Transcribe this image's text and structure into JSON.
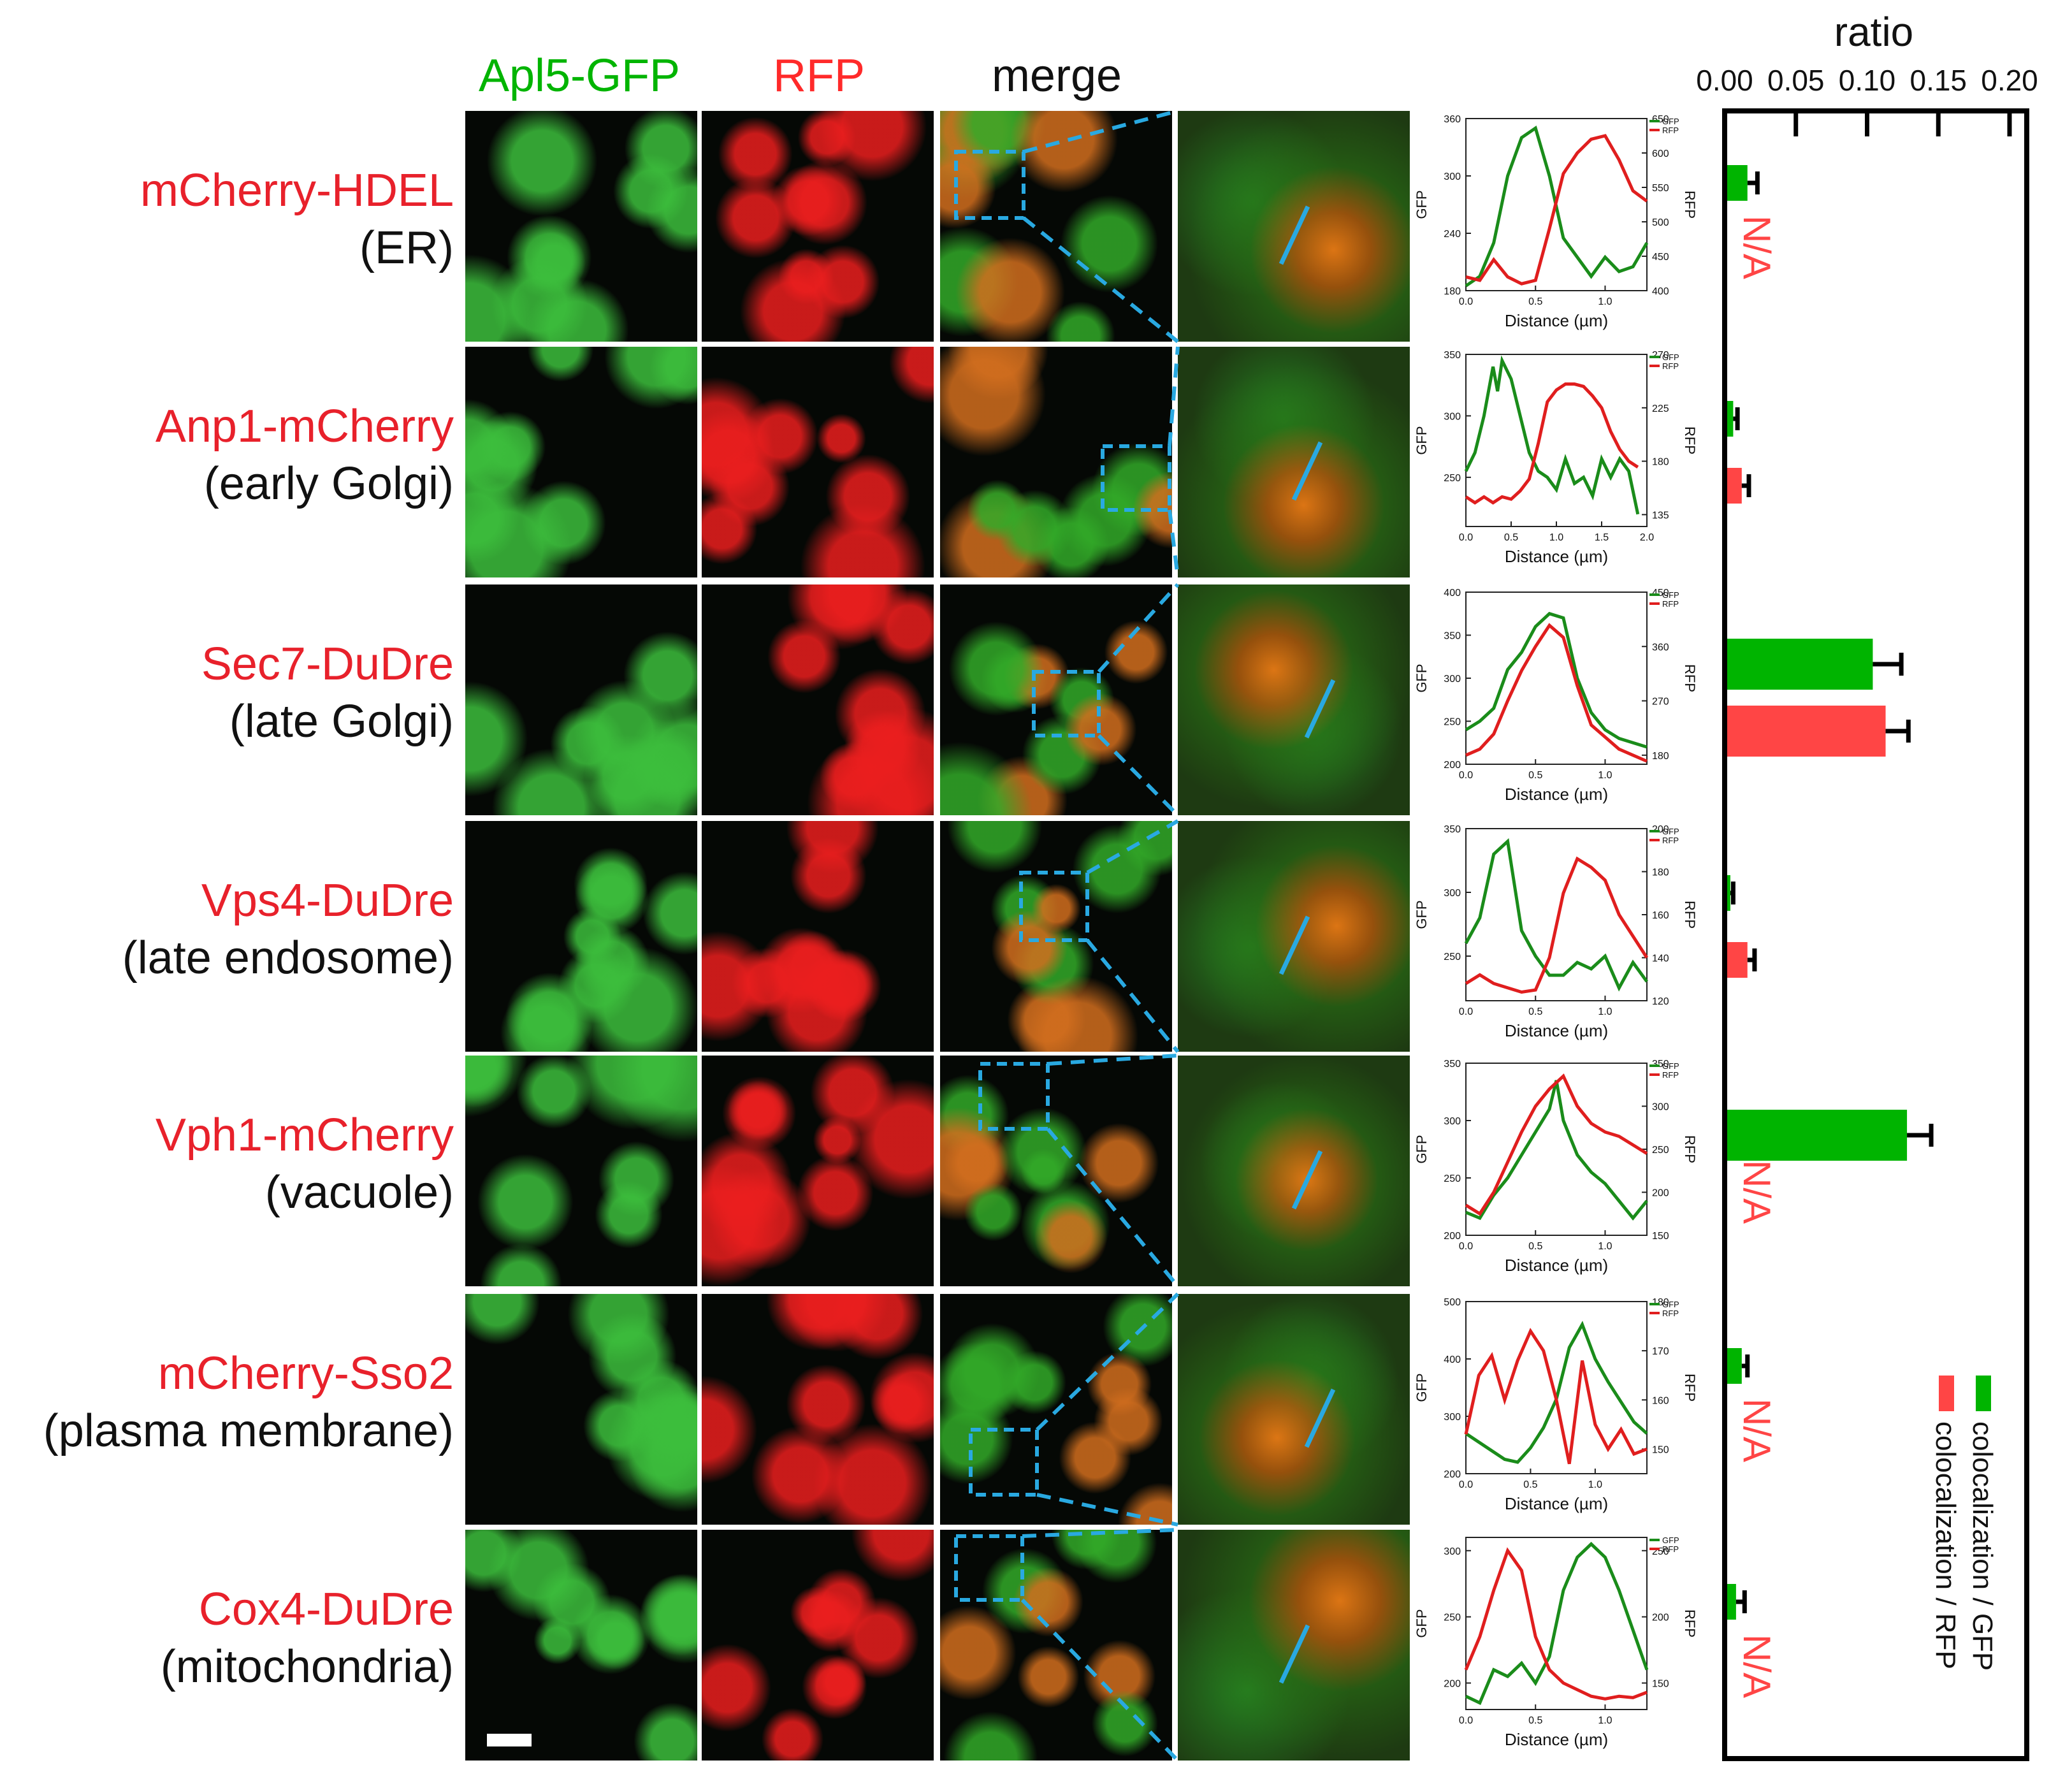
{
  "headers": {
    "green": "Apl5-GFP",
    "red": "RFP",
    "merge": "merge"
  },
  "rows": [
    {
      "marker": "mCherry-HDEL",
      "organelle": "(ER)"
    },
    {
      "marker": "Anp1-mCherry",
      "organelle": "(early Golgi)"
    },
    {
      "marker": "Sec7-DuDre",
      "organelle": "(late Golgi)"
    },
    {
      "marker": "Vps4-DuDre",
      "organelle": "(late endosome)"
    },
    {
      "marker": "Vph1-mCherry",
      "organelle": "(vacuole)"
    },
    {
      "marker": "mCherry-Sso2",
      "organelle": "(plasma membrane)"
    },
    {
      "marker": "Cox4-DuDre",
      "organelle": "(mitochondria)"
    }
  ],
  "colors": {
    "green": "#00b400",
    "red": "#ff3b3b",
    "marker_text": "#e8212b",
    "roi": "#29a9e1",
    "profile_green": "#1a8c1a",
    "profile_red": "#e01e1e"
  },
  "profiles": {
    "xlabel": "Distance (µm)",
    "ylabel_left": "GFP",
    "ylabel_right": "RFP",
    "legend": [
      "GFP",
      "RFP"
    ],
    "panels": [
      {
        "xlim": [
          0,
          1.3
        ],
        "xticks": [
          "0.0",
          "0.5",
          "1.0"
        ],
        "xtickvals": [
          0,
          0.5,
          1.0
        ],
        "gfp_ticks": [
          "180",
          "240",
          "300",
          "360"
        ],
        "gfp_lim": [
          180,
          360
        ],
        "rfp_ticks": [
          "400",
          "450",
          "500",
          "550",
          "600",
          "650"
        ],
        "rfp_lim": [
          400,
          650
        ],
        "gfp": [
          [
            0,
            185
          ],
          [
            0.1,
            195
          ],
          [
            0.2,
            230
          ],
          [
            0.3,
            300
          ],
          [
            0.4,
            340
          ],
          [
            0.5,
            350
          ],
          [
            0.6,
            300
          ],
          [
            0.7,
            235
          ],
          [
            0.8,
            215
          ],
          [
            0.9,
            195
          ],
          [
            1.0,
            215
          ],
          [
            1.1,
            200
          ],
          [
            1.2,
            205
          ],
          [
            1.3,
            230
          ]
        ],
        "rfp": [
          [
            0,
            420
          ],
          [
            0.1,
            415
          ],
          [
            0.2,
            445
          ],
          [
            0.3,
            420
          ],
          [
            0.4,
            410
          ],
          [
            0.5,
            415
          ],
          [
            0.6,
            490
          ],
          [
            0.7,
            570
          ],
          [
            0.8,
            600
          ],
          [
            0.9,
            620
          ],
          [
            1.0,
            625
          ],
          [
            1.1,
            590
          ],
          [
            1.2,
            545
          ],
          [
            1.3,
            530
          ]
        ]
      },
      {
        "xlim": [
          0,
          2.0
        ],
        "xticks": [
          "0.0",
          "0.5",
          "1.0",
          "1.5",
          "2.0"
        ],
        "xtickvals": [
          0,
          0.5,
          1.0,
          1.5,
          2.0
        ],
        "gfp_ticks": [
          "250",
          "300",
          "350"
        ],
        "gfp_lim": [
          210,
          350
        ],
        "rfp_ticks": [
          "135",
          "180",
          "225",
          "270"
        ],
        "rfp_lim": [
          125,
          270
        ],
        "gfp": [
          [
            0,
            255
          ],
          [
            0.1,
            270
          ],
          [
            0.2,
            300
          ],
          [
            0.3,
            340
          ],
          [
            0.35,
            320
          ],
          [
            0.4,
            345
          ],
          [
            0.5,
            330
          ],
          [
            0.6,
            300
          ],
          [
            0.7,
            270
          ],
          [
            0.8,
            255
          ],
          [
            0.9,
            250
          ],
          [
            1.0,
            240
          ],
          [
            1.1,
            265
          ],
          [
            1.2,
            245
          ],
          [
            1.3,
            250
          ],
          [
            1.4,
            235
          ],
          [
            1.5,
            265
          ],
          [
            1.6,
            250
          ],
          [
            1.7,
            265
          ],
          [
            1.8,
            255
          ],
          [
            1.9,
            220
          ]
        ],
        "rfp": [
          [
            0,
            150
          ],
          [
            0.1,
            145
          ],
          [
            0.2,
            150
          ],
          [
            0.3,
            145
          ],
          [
            0.4,
            150
          ],
          [
            0.5,
            148
          ],
          [
            0.6,
            155
          ],
          [
            0.7,
            165
          ],
          [
            0.8,
            195
          ],
          [
            0.9,
            230
          ],
          [
            1.0,
            240
          ],
          [
            1.1,
            245
          ],
          [
            1.2,
            245
          ],
          [
            1.3,
            243
          ],
          [
            1.4,
            235
          ],
          [
            1.5,
            225
          ],
          [
            1.6,
            205
          ],
          [
            1.7,
            190
          ],
          [
            1.8,
            180
          ],
          [
            1.9,
            175
          ]
        ]
      },
      {
        "xlim": [
          0,
          1.3
        ],
        "xticks": [
          "0.0",
          "0.5",
          "1.0"
        ],
        "xtickvals": [
          0,
          0.5,
          1.0
        ],
        "gfp_ticks": [
          "200",
          "250",
          "300",
          "350",
          "400"
        ],
        "gfp_lim": [
          200,
          400
        ],
        "rfp_ticks": [
          "180",
          "270",
          "360",
          "450"
        ],
        "rfp_lim": [
          165,
          450
        ],
        "gfp": [
          [
            0,
            240
          ],
          [
            0.1,
            250
          ],
          [
            0.2,
            265
          ],
          [
            0.3,
            310
          ],
          [
            0.4,
            330
          ],
          [
            0.5,
            360
          ],
          [
            0.6,
            375
          ],
          [
            0.7,
            370
          ],
          [
            0.8,
            300
          ],
          [
            0.9,
            260
          ],
          [
            1.0,
            240
          ],
          [
            1.1,
            230
          ],
          [
            1.2,
            225
          ],
          [
            1.3,
            220
          ]
        ],
        "rfp": [
          [
            0,
            180
          ],
          [
            0.1,
            190
          ],
          [
            0.2,
            215
          ],
          [
            0.3,
            270
          ],
          [
            0.4,
            320
          ],
          [
            0.5,
            360
          ],
          [
            0.6,
            395
          ],
          [
            0.7,
            375
          ],
          [
            0.8,
            295
          ],
          [
            0.9,
            230
          ],
          [
            1.0,
            210
          ],
          [
            1.1,
            190
          ],
          [
            1.2,
            180
          ],
          [
            1.3,
            170
          ]
        ]
      },
      {
        "xlim": [
          0,
          1.3
        ],
        "xticks": [
          "0.0",
          "0.5",
          "1.0"
        ],
        "xtickvals": [
          0,
          0.5,
          1.0
        ],
        "gfp_ticks": [
          "250",
          "300",
          "350"
        ],
        "gfp_lim": [
          215,
          350
        ],
        "rfp_ticks": [
          "120",
          "140",
          "160",
          "180",
          "200"
        ],
        "rfp_lim": [
          120,
          200
        ],
        "gfp": [
          [
            0,
            260
          ],
          [
            0.1,
            280
          ],
          [
            0.2,
            330
          ],
          [
            0.3,
            340
          ],
          [
            0.4,
            270
          ],
          [
            0.5,
            250
          ],
          [
            0.6,
            235
          ],
          [
            0.7,
            235
          ],
          [
            0.8,
            245
          ],
          [
            0.9,
            240
          ],
          [
            1.0,
            250
          ],
          [
            1.1,
            225
          ],
          [
            1.2,
            245
          ],
          [
            1.3,
            230
          ]
        ],
        "rfp": [
          [
            0,
            128
          ],
          [
            0.1,
            132
          ],
          [
            0.2,
            128
          ],
          [
            0.3,
            126
          ],
          [
            0.4,
            124
          ],
          [
            0.5,
            125
          ],
          [
            0.6,
            140
          ],
          [
            0.7,
            170
          ],
          [
            0.8,
            186
          ],
          [
            0.9,
            182
          ],
          [
            1.0,
            176
          ],
          [
            1.1,
            160
          ],
          [
            1.2,
            150
          ],
          [
            1.3,
            140
          ]
        ]
      },
      {
        "xlim": [
          0,
          1.3
        ],
        "xticks": [
          "0.0",
          "0.5",
          "1.0"
        ],
        "xtickvals": [
          0,
          0.5,
          1.0
        ],
        "gfp_ticks": [
          "200",
          "250",
          "300",
          "350"
        ],
        "gfp_lim": [
          200,
          350
        ],
        "rfp_ticks": [
          "150",
          "200",
          "250",
          "300",
          "350"
        ],
        "rfp_lim": [
          150,
          350
        ],
        "gfp": [
          [
            0,
            220
          ],
          [
            0.1,
            215
          ],
          [
            0.2,
            235
          ],
          [
            0.3,
            250
          ],
          [
            0.4,
            270
          ],
          [
            0.5,
            290
          ],
          [
            0.6,
            310
          ],
          [
            0.65,
            335
          ],
          [
            0.7,
            300
          ],
          [
            0.8,
            270
          ],
          [
            0.9,
            255
          ],
          [
            1.0,
            245
          ],
          [
            1.1,
            230
          ],
          [
            1.2,
            215
          ],
          [
            1.3,
            230
          ]
        ],
        "rfp": [
          [
            0,
            185
          ],
          [
            0.1,
            175
          ],
          [
            0.2,
            200
          ],
          [
            0.3,
            235
          ],
          [
            0.4,
            270
          ],
          [
            0.5,
            300
          ],
          [
            0.6,
            320
          ],
          [
            0.7,
            335
          ],
          [
            0.8,
            300
          ],
          [
            0.9,
            280
          ],
          [
            1.0,
            270
          ],
          [
            1.1,
            265
          ],
          [
            1.2,
            255
          ],
          [
            1.3,
            245
          ]
        ]
      },
      {
        "xlim": [
          0,
          1.4
        ],
        "xticks": [
          "0.0",
          "0.5",
          "1.0"
        ],
        "xtickvals": [
          0,
          0.5,
          1.0
        ],
        "gfp_ticks": [
          "200",
          "300",
          "400",
          "500"
        ],
        "gfp_lim": [
          200,
          500
        ],
        "rfp_ticks": [
          "150",
          "160",
          "170",
          "180"
        ],
        "rfp_lim": [
          145,
          180
        ],
        "gfp": [
          [
            0,
            270
          ],
          [
            0.1,
            255
          ],
          [
            0.2,
            240
          ],
          [
            0.3,
            225
          ],
          [
            0.4,
            220
          ],
          [
            0.5,
            245
          ],
          [
            0.6,
            280
          ],
          [
            0.7,
            330
          ],
          [
            0.8,
            420
          ],
          [
            0.9,
            460
          ],
          [
            1.0,
            400
          ],
          [
            1.1,
            360
          ],
          [
            1.2,
            325
          ],
          [
            1.3,
            290
          ],
          [
            1.4,
            270
          ]
        ],
        "rfp": [
          [
            0,
            153
          ],
          [
            0.1,
            165
          ],
          [
            0.2,
            169
          ],
          [
            0.3,
            160
          ],
          [
            0.4,
            168
          ],
          [
            0.5,
            174
          ],
          [
            0.6,
            170
          ],
          [
            0.7,
            160
          ],
          [
            0.8,
            147
          ],
          [
            0.9,
            168
          ],
          [
            1.0,
            155
          ],
          [
            1.1,
            150
          ],
          [
            1.2,
            154
          ],
          [
            1.3,
            149
          ],
          [
            1.4,
            150
          ]
        ]
      },
      {
        "xlim": [
          0,
          1.3
        ],
        "xticks": [
          "0.0",
          "0.5",
          "1.0"
        ],
        "xtickvals": [
          0,
          0.5,
          1.0
        ],
        "gfp_ticks": [
          "200",
          "250",
          "300"
        ],
        "gfp_lim": [
          180,
          310
        ],
        "rfp_ticks": [
          "150",
          "200",
          "250"
        ],
        "rfp_lim": [
          130,
          260
        ],
        "gfp": [
          [
            0,
            190
          ],
          [
            0.1,
            185
          ],
          [
            0.2,
            210
          ],
          [
            0.3,
            205
          ],
          [
            0.4,
            215
          ],
          [
            0.5,
            200
          ],
          [
            0.6,
            220
          ],
          [
            0.7,
            270
          ],
          [
            0.8,
            295
          ],
          [
            0.9,
            305
          ],
          [
            1.0,
            295
          ],
          [
            1.1,
            270
          ],
          [
            1.2,
            240
          ],
          [
            1.3,
            210
          ]
        ],
        "rfp": [
          [
            0,
            160
          ],
          [
            0.1,
            185
          ],
          [
            0.2,
            220
          ],
          [
            0.3,
            250
          ],
          [
            0.4,
            235
          ],
          [
            0.5,
            185
          ],
          [
            0.6,
            160
          ],
          [
            0.7,
            150
          ],
          [
            0.8,
            145
          ],
          [
            0.9,
            140
          ],
          [
            1.0,
            138
          ],
          [
            1.1,
            140
          ],
          [
            1.2,
            139
          ],
          [
            1.3,
            143
          ]
        ]
      }
    ]
  },
  "chart_data": {
    "type": "bar",
    "orientation": "horizontal",
    "title": "ratio",
    "xlim": [
      0,
      0.2
    ],
    "xticks": [
      "0.00",
      "0.05",
      "0.10",
      "0.15",
      "0.20"
    ],
    "categories": [
      "mCherry-HDEL",
      "Anp1-mCherry",
      "Sec7-DuDre",
      "Vps4-DuDre",
      "Vph1-mCherry",
      "mCherry-Sso2",
      "Cox4-DuDre"
    ],
    "series": [
      {
        "name": "colocalization / GFP",
        "color": "#00b400",
        "values": [
          0.016,
          0.006,
          0.104,
          0.004,
          0.128,
          0.012,
          0.008
        ],
        "errors": [
          0.007,
          0.003,
          0.02,
          0.002,
          0.017,
          0.004,
          0.006
        ]
      },
      {
        "name": "colocalization / RFP",
        "color": "#ff4545",
        "values": [
          null,
          0.012,
          0.113,
          0.016,
          null,
          null,
          null
        ],
        "errors": [
          null,
          0.005,
          0.016,
          0.005,
          null,
          null,
          null
        ]
      }
    ],
    "na_label": "N/A",
    "legend_position": "bottom-right"
  }
}
